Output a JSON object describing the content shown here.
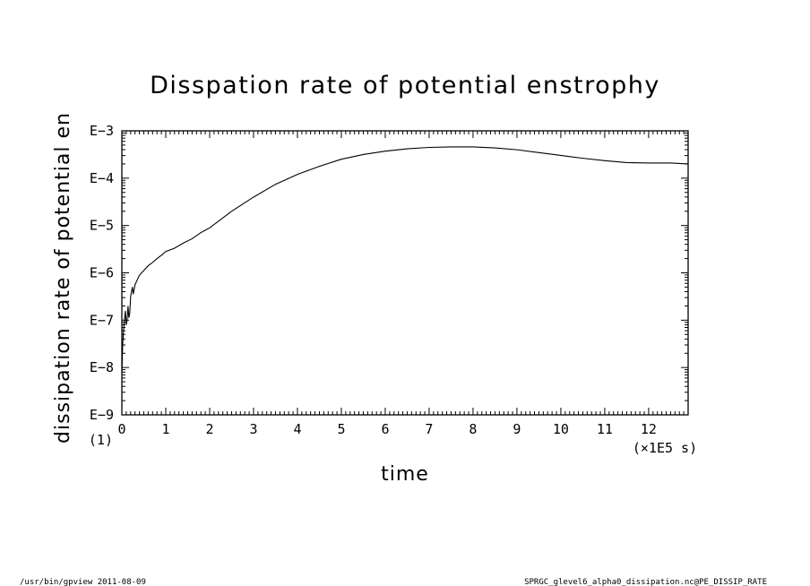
{
  "chart_data": {
    "type": "line",
    "title": "Disspation rate of potential enstrophy",
    "xlabel": "time",
    "ylabel": "dissipation rate of potential en",
    "x_unit_label": "(×1E5 s)",
    "y_unit_label": "(1)",
    "xlim": [
      0,
      12.9
    ],
    "ylim": [
      -9,
      -3
    ],
    "y_scale": "log10",
    "x_ticks": [
      0,
      1,
      2,
      3,
      4,
      5,
      6,
      7,
      8,
      9,
      10,
      11,
      12
    ],
    "x_tick_labels": [
      "0",
      "1",
      "2",
      "3",
      "4",
      "5",
      "6",
      "7",
      "8",
      "9",
      "10",
      "11",
      "12"
    ],
    "y_ticks": [
      -9,
      -8,
      -7,
      -6,
      -5,
      -4,
      -3
    ],
    "y_tick_labels": [
      "E−9",
      "E−8",
      "E−7",
      "E−6",
      "E−5",
      "E−4",
      "E−3"
    ],
    "grid": false,
    "series": [
      {
        "x": [
          0,
          0.02,
          0.04,
          0.06,
          0.08,
          0.1,
          0.12,
          0.14,
          0.16,
          0.18,
          0.2,
          0.22,
          0.24,
          0.26,
          0.28,
          0.3,
          0.35,
          0.4,
          0.5,
          0.6,
          0.7,
          0.8,
          0.9,
          1.0,
          1.2,
          1.4,
          1.6,
          1.8,
          2.0,
          2.5,
          3.0,
          3.5,
          4.0,
          4.5,
          5.0,
          5.5,
          6.0,
          6.5,
          7.0,
          7.5,
          8.0,
          8.5,
          9.0,
          9.5,
          10.0,
          10.5,
          11.0,
          11.5,
          12.0,
          12.5,
          12.9
        ],
        "y": [
          -8.1,
          -7.5,
          -7.2,
          -7.0,
          -6.8,
          -7.1,
          -7.0,
          -6.7,
          -6.95,
          -6.85,
          -6.5,
          -6.4,
          -6.3,
          -6.45,
          -6.35,
          -6.25,
          -6.15,
          -6.05,
          -5.95,
          -5.85,
          -5.78,
          -5.7,
          -5.63,
          -5.55,
          -5.48,
          -5.37,
          -5.28,
          -5.15,
          -5.05,
          -4.7,
          -4.4,
          -4.13,
          -3.92,
          -3.75,
          -3.6,
          -3.5,
          -3.43,
          -3.38,
          -3.35,
          -3.34,
          -3.34,
          -3.36,
          -3.4,
          -3.46,
          -3.52,
          -3.58,
          -3.63,
          -3.67,
          -3.68,
          -3.68,
          -3.7
        ]
      }
    ]
  },
  "footer": {
    "left": "/usr/bin/gpview   2011-08-09",
    "right": "SPRGC_glevel6_alpha0_dissipation.nc@PE_DISSIP_RATE"
  }
}
